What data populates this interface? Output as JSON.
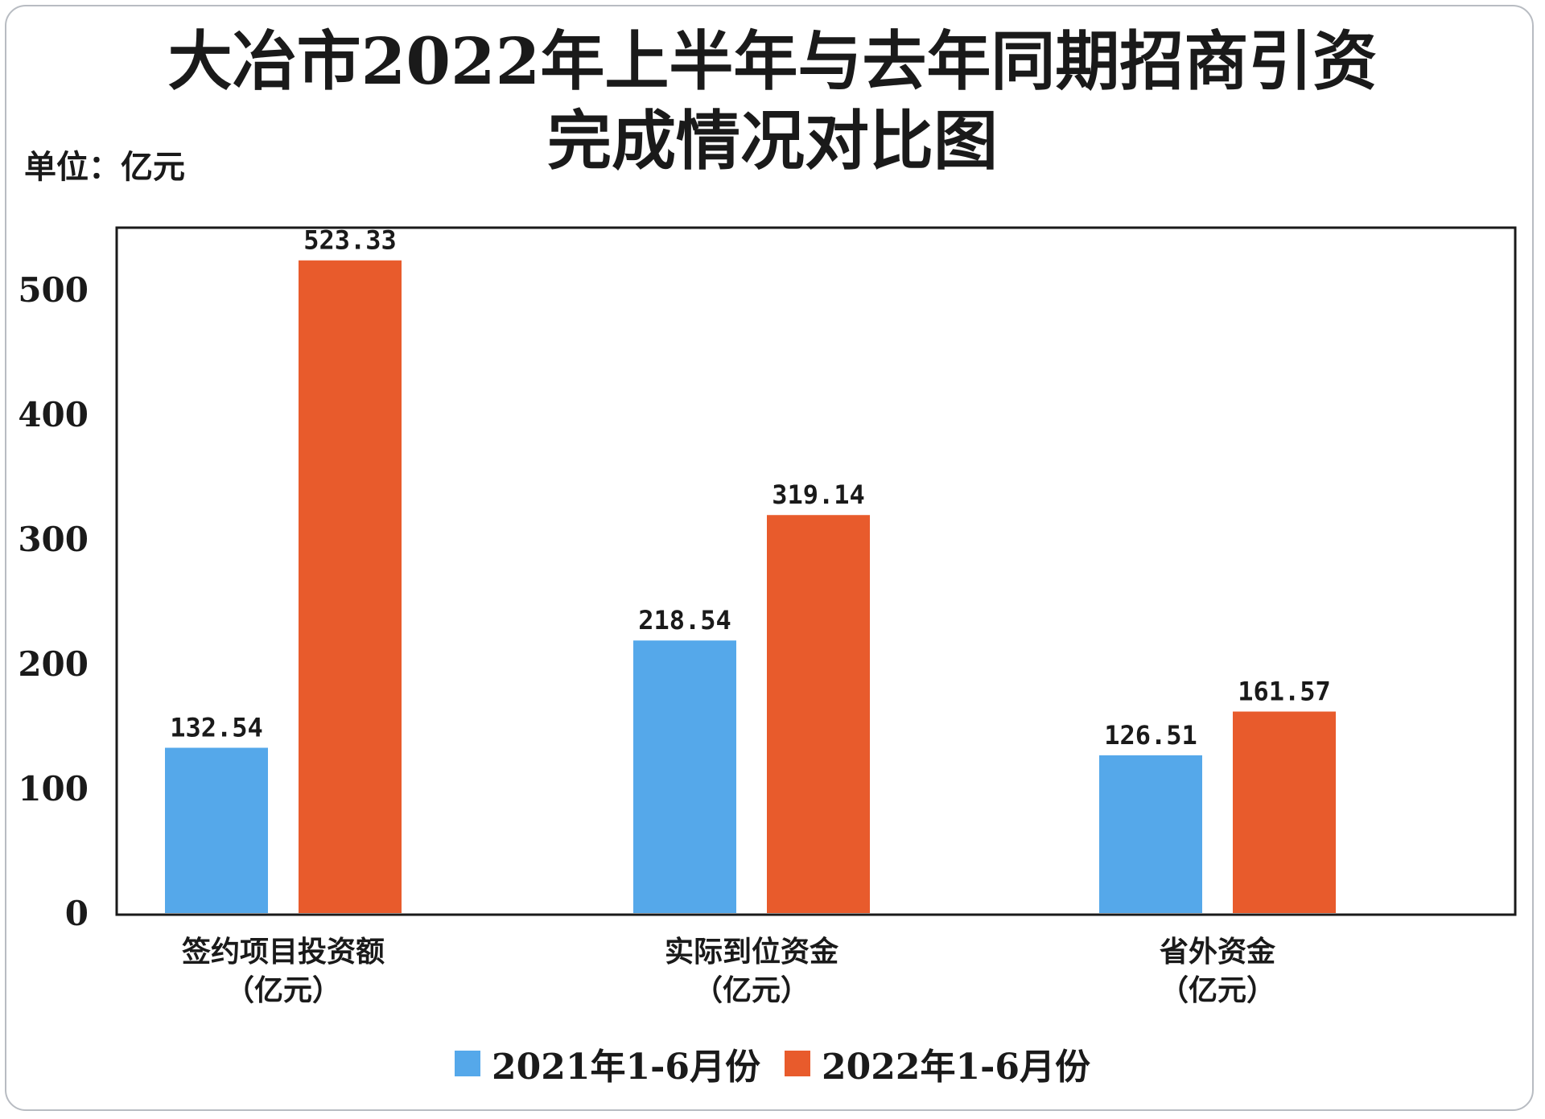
{
  "chart_data": {
    "type": "bar",
    "title": "大冶市2022年上半年与去年同期招商引资",
    "title_line2": "完成情况对比图",
    "unit_label": "单位：亿元",
    "categories": [
      {
        "line1": "签约项目投资额",
        "line2": "（亿元）"
      },
      {
        "line1": "实际到位资金",
        "line2": "（亿元）"
      },
      {
        "line1": "省外资金",
        "line2": "（亿元）"
      }
    ],
    "series": [
      {
        "name": "2021年1-6月份",
        "color": "#55a8ea",
        "values": [
          132.54,
          218.54,
          126.51
        ],
        "labels": [
          "132.54",
          "218.54",
          "126.51"
        ]
      },
      {
        "name": "2022年1-6月份",
        "color": "#e85b2c",
        "values": [
          523.33,
          319.14,
          161.57
        ],
        "labels": [
          "523.33",
          "319.14",
          "161.57"
        ]
      }
    ],
    "ylim": [
      0,
      550
    ],
    "yticks": [
      0,
      100,
      200,
      300,
      400,
      500
    ],
    "grid": false,
    "legend_position": "bottom"
  }
}
